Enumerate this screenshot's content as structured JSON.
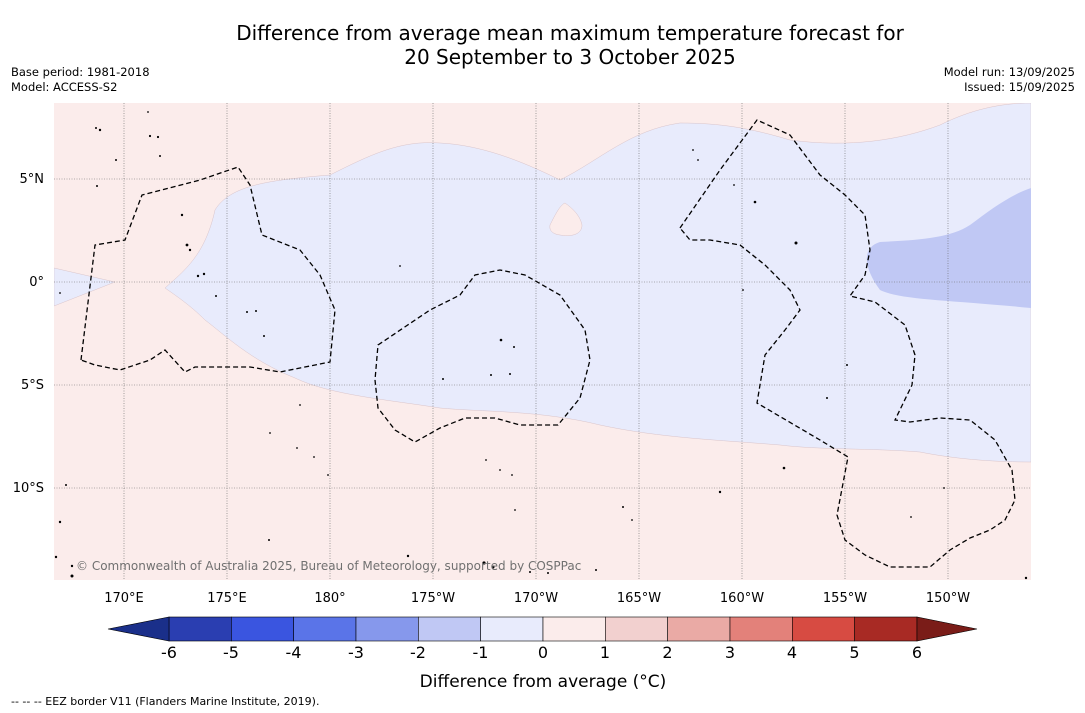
{
  "title_line1": "Difference from average mean maximum temperature forecast for",
  "title_line2": "20 September to 3 October 2025",
  "base_period": "Base period: 1981-2018",
  "model": "Model: ACCESS-S2",
  "model_run": "Model run: 13/09/2025",
  "issued": "Issued: 15/09/2025",
  "latitude_labels": [
    "5°N",
    "0°",
    "5°S",
    "10°S"
  ],
  "longitude_labels": [
    "170°E",
    "175°E",
    "180°",
    "175°W",
    "170°W",
    "165°W",
    "160°W",
    "155°W",
    "150°W"
  ],
  "copyright": "© Commonwealth of Australia 2025, Bureau of Meteorology, supported by COSPPac",
  "colorbar": {
    "title": "Difference from average (°C)",
    "tick_labels": [
      "-6",
      "-5",
      "-4",
      "-3",
      "-2",
      "-1",
      "0",
      "1",
      "2",
      "3",
      "4",
      "5",
      "6"
    ],
    "bin_colors": [
      "#2a3eb1",
      "#3a55e0",
      "#5a74e8",
      "#8698ec",
      "#c0c8f4",
      "#e8ebfc",
      "#fbeceb",
      "#f2d0cf",
      "#eaaaa5",
      "#e3817a",
      "#d74b42",
      "#a82a24"
    ],
    "low_extend_color": "#1a2f8a",
    "high_extend_color": "#7a1c18"
  },
  "colors": {
    "ocean_warm": "#fbeceb",
    "ocean_cool": "#e8ebfc",
    "ocean_cooler": "#c0c8f4"
  },
  "eez_note": "--  --  -- EEZ border V11 (Flanders Marine Institute, 2019)."
}
